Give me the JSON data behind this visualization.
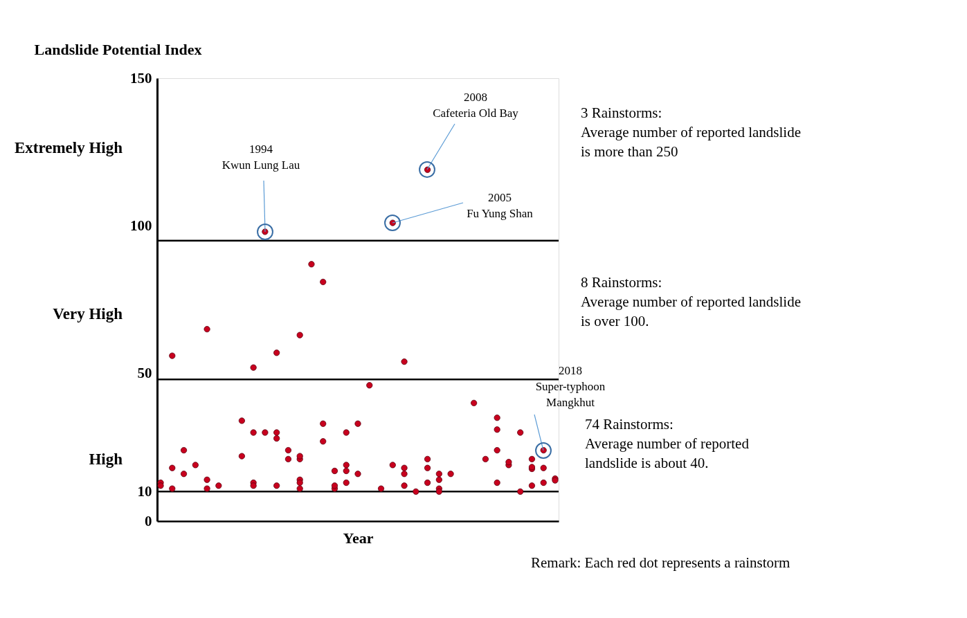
{
  "chart_data": {
    "type": "scatter",
    "ylabel": "Landslide Potential Index",
    "xlabel": "Year",
    "categories": [
      null,
      null,
      null,
      null,
      null,
      null,
      null,
      null,
      null,
      null,
      null,
      null,
      null,
      null,
      null,
      null,
      null,
      null,
      null,
      null,
      null,
      null,
      null,
      null,
      null,
      null,
      null,
      null,
      null,
      null,
      null,
      null,
      null,
      null,
      null
    ],
    "ylim": [
      0,
      150
    ],
    "yticks": [
      0,
      10,
      50,
      100,
      150
    ],
    "tick_labels": "y",
    "grid": false,
    "marker": "circle",
    "series": [
      {
        "color": "#c8001e",
        "values": [
          13,
          11,
          16,
          19,
          14,
          12,
          null,
          34,
          13,
          30,
          12,
          24,
          11,
          87,
          27,
          11,
          30,
          16,
          46,
          11,
          19,
          18,
          10,
          21,
          11,
          16,
          null,
          40,
          21,
          31,
          19,
          10,
          17.7,
          18,
          14.4
        ]
      },
      {
        "color": "#c8001e",
        "values": [
          12,
          18,
          24,
          null,
          11,
          null,
          null,
          22,
          12,
          98,
          30,
          21,
          14,
          null,
          33,
          12,
          17,
          33,
          null,
          null,
          101,
          16,
          null,
          18,
          14,
          null,
          null,
          null,
          null,
          35,
          20,
          30,
          21,
          13,
          13.8
        ]
      },
      {
        "color": "#c8001e",
        "values": [
          null,
          56,
          null,
          null,
          65,
          null,
          null,
          null,
          30,
          null,
          28,
          null,
          21,
          null,
          81,
          17,
          13,
          null,
          null,
          null,
          null,
          12,
          null,
          13,
          16,
          null,
          null,
          null,
          null,
          24,
          null,
          null,
          18.3,
          24,
          null
        ]
      },
      {
        "color": "#c8001e",
        "values": [
          null,
          null,
          null,
          null,
          null,
          null,
          null,
          null,
          52,
          null,
          57,
          null,
          22,
          null,
          null,
          null,
          19,
          null,
          null,
          null,
          null,
          54,
          null,
          119,
          10,
          null,
          null,
          null,
          null,
          13,
          null,
          null,
          12,
          null,
          null
        ]
      },
      {
        "color": "#c8001e",
        "values": [
          null,
          null,
          null,
          null,
          null,
          null,
          null,
          null,
          null,
          null,
          null,
          null,
          13,
          null,
          null,
          null,
          null,
          null,
          null,
          null,
          null,
          null,
          null,
          null,
          null,
          null,
          null,
          null,
          null,
          null,
          null,
          null,
          null,
          null,
          null
        ]
      },
      {
        "color": "#c8001e",
        "values": [
          null,
          null,
          null,
          null,
          null,
          null,
          null,
          null,
          null,
          null,
          null,
          null,
          63,
          null,
          null,
          null,
          null,
          null,
          null,
          null,
          null,
          null,
          null,
          null,
          null,
          null,
          null,
          null,
          null,
          null,
          null,
          null,
          null,
          null,
          null
        ]
      }
    ],
    "ref_lines": [
      {
        "axis": "y",
        "value": 95,
        "color": "#000000"
      },
      {
        "axis": "y",
        "value": 48,
        "color": "#000000"
      },
      {
        "axis": "y",
        "value": 10,
        "color": "#000000"
      }
    ],
    "annotations": [
      "1994\nKwun Lung Lau",
      "2008\nCafeteria Old Bay",
      "2005\nFu Yung Shan",
      "2018\nSuper-typhoon\nMangkhut",
      "Extremely High",
      "Very High",
      "High",
      "3 Rainstorms:\nAverage number of reported landslide\nis more than 250",
      "8 Rainstorms:\nAverage number of reported landslide\nis over 100.",
      "74 Rainstorms:\nAverage number of reported\nlandslide is about 40.",
      "Remark: Each red dot represents a rainstorm"
    ]
  }
}
